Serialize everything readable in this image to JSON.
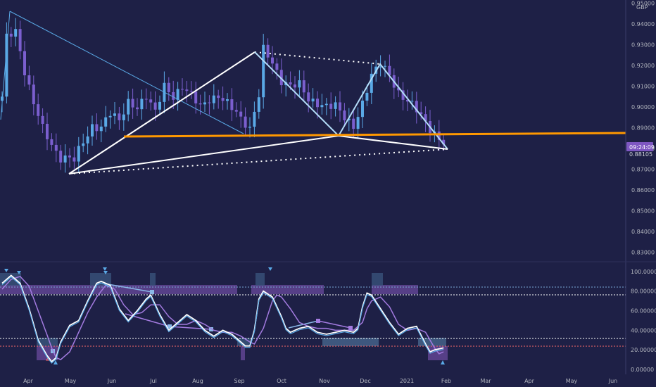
{
  "chart_data": {
    "type": "candlestick",
    "currency": "GBP",
    "y_ticks": [
      "0.95000",
      "0.94000",
      "0.93000",
      "0.92000",
      "0.91000",
      "0.90000",
      "0.89000",
      "0.88000",
      "0.87000",
      "0.86000",
      "0.85000",
      "0.84000",
      "0.83000"
    ],
    "ylim": [
      0.8255,
      0.9515
    ],
    "x_labels": [
      "Apr",
      "May",
      "Jun",
      "Jul",
      "Aug",
      "Sep",
      "Oct",
      "Nov",
      "Dec",
      "2021",
      "Feb",
      "Mar",
      "Apr",
      "May",
      "Jun"
    ],
    "price_label": "0.88105",
    "time_label": "09:24:09",
    "price_anchors": [
      [
        0,
        0.905
      ],
      [
        1,
        0.933
      ],
      [
        3,
        0.936
      ],
      [
        5,
        0.918
      ],
      [
        7,
        0.902
      ],
      [
        9,
        0.889
      ],
      [
        11,
        0.882
      ],
      [
        13,
        0.876
      ],
      [
        16,
        0.874
      ],
      [
        18,
        0.884
      ],
      [
        20,
        0.891
      ],
      [
        22,
        0.889
      ],
      [
        24,
        0.897
      ],
      [
        26,
        0.895
      ],
      [
        28,
        0.902
      ],
      [
        30,
        0.898
      ],
      [
        32,
        0.906
      ],
      [
        34,
        0.899
      ],
      [
        36,
        0.909
      ],
      [
        38,
        0.904
      ],
      [
        40,
        0.911
      ],
      [
        42,
        0.906
      ],
      [
        44,
        0.899
      ],
      [
        46,
        0.904
      ],
      [
        48,
        0.906
      ],
      [
        50,
        0.901
      ],
      [
        52,
        0.897
      ],
      [
        54,
        0.893
      ],
      [
        55,
        0.89
      ],
      [
        57,
        0.905
      ],
      [
        58,
        0.927
      ],
      [
        60,
        0.922
      ],
      [
        62,
        0.913
      ],
      [
        64,
        0.909
      ],
      [
        66,
        0.911
      ],
      [
        68,
        0.905
      ],
      [
        70,
        0.901
      ],
      [
        72,
        0.899
      ],
      [
        74,
        0.902
      ],
      [
        76,
        0.896
      ],
      [
        78,
        0.889
      ],
      [
        80,
        0.901
      ],
      [
        82,
        0.917
      ],
      [
        84,
        0.921
      ],
      [
        86,
        0.914
      ],
      [
        88,
        0.907
      ],
      [
        90,
        0.904
      ],
      [
        92,
        0.898
      ],
      [
        94,
        0.892
      ],
      [
        96,
        0.888
      ],
      [
        97,
        0.885
      ],
      [
        98,
        0.883
      ]
    ],
    "oscillator": {
      "y_ticks": [
        "100.00000",
        "80.00000",
        "60.00000",
        "40.00000",
        "20.00000",
        "0.00000"
      ],
      "ylim": [
        -5,
        110
      ],
      "fast": [
        [
          0,
          88
        ],
        [
          2,
          96
        ],
        [
          4,
          88
        ],
        [
          6,
          62
        ],
        [
          8,
          30
        ],
        [
          10,
          14
        ],
        [
          11,
          8
        ],
        [
          12,
          12
        ],
        [
          13,
          28
        ],
        [
          15,
          45
        ],
        [
          17,
          50
        ],
        [
          19,
          70
        ],
        [
          21,
          88
        ],
        [
          22,
          90
        ],
        [
          24,
          86
        ],
        [
          26,
          62
        ],
        [
          28,
          50
        ],
        [
          30,
          60
        ],
        [
          32,
          72
        ],
        [
          33,
          76
        ],
        [
          35,
          56
        ],
        [
          37,
          40
        ],
        [
          39,
          48
        ],
        [
          41,
          56
        ],
        [
          43,
          50
        ],
        [
          45,
          40
        ],
        [
          47,
          34
        ],
        [
          49,
          40
        ],
        [
          51,
          36
        ],
        [
          53,
          28
        ],
        [
          54,
          24
        ],
        [
          55,
          24
        ],
        [
          56,
          40
        ],
        [
          57,
          72
        ],
        [
          58,
          80
        ],
        [
          60,
          74
        ],
        [
          62,
          54
        ],
        [
          63,
          42
        ],
        [
          64,
          38
        ],
        [
          66,
          42
        ],
        [
          68,
          44
        ],
        [
          70,
          38
        ],
        [
          72,
          36
        ],
        [
          74,
          38
        ],
        [
          76,
          40
        ],
        [
          78,
          38
        ],
        [
          79,
          42
        ],
        [
          80,
          64
        ],
        [
          81,
          78
        ],
        [
          82,
          76
        ],
        [
          84,
          62
        ],
        [
          86,
          48
        ],
        [
          88,
          36
        ],
        [
          90,
          42
        ],
        [
          92,
          44
        ],
        [
          94,
          26
        ],
        [
          95,
          18
        ],
        [
          96,
          20
        ],
        [
          98,
          22
        ]
      ],
      "slow": [
        [
          0,
          82
        ],
        [
          2,
          92
        ],
        [
          4,
          95
        ],
        [
          6,
          85
        ],
        [
          8,
          60
        ],
        [
          10,
          35
        ],
        [
          11,
          22
        ],
        [
          12,
          12
        ],
        [
          13,
          10
        ],
        [
          15,
          18
        ],
        [
          17,
          38
        ],
        [
          19,
          58
        ],
        [
          21,
          74
        ],
        [
          23,
          86
        ],
        [
          25,
          82
        ],
        [
          27,
          66
        ],
        [
          29,
          56
        ],
        [
          31,
          58
        ],
        [
          33,
          66
        ],
        [
          35,
          66
        ],
        [
          37,
          54
        ],
        [
          39,
          46
        ],
        [
          41,
          46
        ],
        [
          43,
          50
        ],
        [
          45,
          46
        ],
        [
          47,
          40
        ],
        [
          49,
          38
        ],
        [
          51,
          38
        ],
        [
          53,
          34
        ],
        [
          55,
          28
        ],
        [
          56,
          26
        ],
        [
          58,
          42
        ],
        [
          60,
          70
        ],
        [
          61,
          76
        ],
        [
          62,
          74
        ],
        [
          64,
          62
        ],
        [
          66,
          48
        ],
        [
          68,
          44
        ],
        [
          70,
          42
        ],
        [
          72,
          42
        ],
        [
          74,
          40
        ],
        [
          76,
          40
        ],
        [
          78,
          40
        ],
        [
          80,
          48
        ],
        [
          81,
          62
        ],
        [
          82,
          70
        ],
        [
          84,
          74
        ],
        [
          86,
          64
        ],
        [
          88,
          46
        ],
        [
          90,
          40
        ],
        [
          92,
          42
        ],
        [
          94,
          38
        ],
        [
          96,
          22
        ],
        [
          97,
          16
        ],
        [
          98,
          18
        ]
      ]
    }
  }
}
